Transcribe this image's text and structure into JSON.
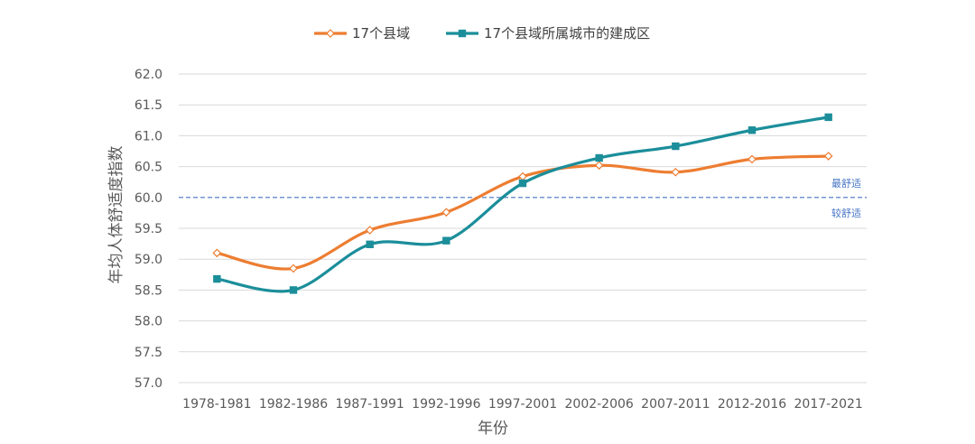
{
  "chart_data": {
    "type": "line",
    "categories": [
      "1978-1981",
      "1982-1986",
      "1987-1991",
      "1992-1996",
      "1997-2001",
      "2002-2006",
      "2007-2011",
      "2012-2016",
      "2017-2021"
    ],
    "series": [
      {
        "name": "17个县域",
        "color": "#ED7D31",
        "marker": "diamond",
        "values": [
          59.1,
          58.85,
          59.47,
          59.76,
          60.34,
          60.52,
          60.41,
          60.62,
          60.67
        ]
      },
      {
        "name": "17个县域所属城市的建成区",
        "color": "#1B8E9A",
        "marker": "square",
        "values": [
          58.68,
          58.5,
          59.24,
          59.3,
          60.23,
          60.64,
          60.83,
          61.09,
          61.3
        ]
      }
    ],
    "xlabel": "年份",
    "ylabel": "年均人体舒适度指数",
    "ylim": [
      57.0,
      62.0
    ],
    "yticks": [
      "57.0",
      "57.5",
      "58.0",
      "58.5",
      "59.0",
      "59.5",
      "60.0",
      "60.5",
      "61.0",
      "61.5",
      "62.0"
    ],
    "grid": true,
    "legend_position": "top-center",
    "reference_line": {
      "value": 60.0,
      "color": "#4472C4",
      "style": "dashed",
      "label_above": "最舒适",
      "label_below": "较舒适"
    }
  }
}
